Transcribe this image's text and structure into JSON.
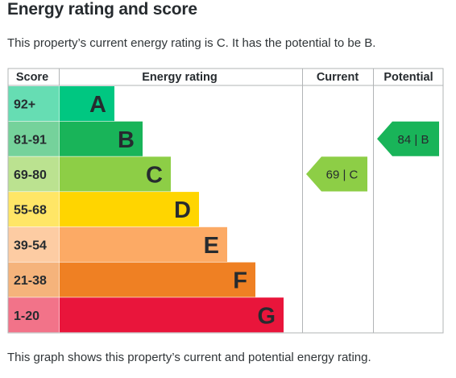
{
  "title": "Energy rating and score",
  "intro": "This property’s current energy rating is C. It has the potential to be B.",
  "footer": "This graph shows this property’s current and potential energy rating.",
  "table": {
    "headers": {
      "score": "Score",
      "rating": "Energy rating",
      "current": "Current",
      "potential": "Potential"
    }
  },
  "bands": [
    {
      "score": "92+",
      "letter": "A",
      "color": "#00c781",
      "score_bg": "#66ddb3"
    },
    {
      "score": "81-91",
      "letter": "B",
      "color": "#19b459",
      "score_bg": "#75d29b"
    },
    {
      "score": "69-80",
      "letter": "C",
      "color": "#8dce46",
      "score_bg": "#bbe290"
    },
    {
      "score": "55-68",
      "letter": "D",
      "color": "#ffd500",
      "score_bg": "#ffe666"
    },
    {
      "score": "39-54",
      "letter": "E",
      "color": "#fcaa65",
      "score_bg": "#fdcca3"
    },
    {
      "score": "21-38",
      "letter": "F",
      "color": "#ef8023",
      "score_bg": "#f5b37b"
    },
    {
      "score": "1-20",
      "letter": "G",
      "color": "#e9153b",
      "score_bg": "#f27389"
    }
  ],
  "current": {
    "label": "69 | C",
    "band": "C",
    "color": "#8dce46"
  },
  "potential": {
    "label": "84 | B",
    "band": "B",
    "color": "#19b459"
  }
}
